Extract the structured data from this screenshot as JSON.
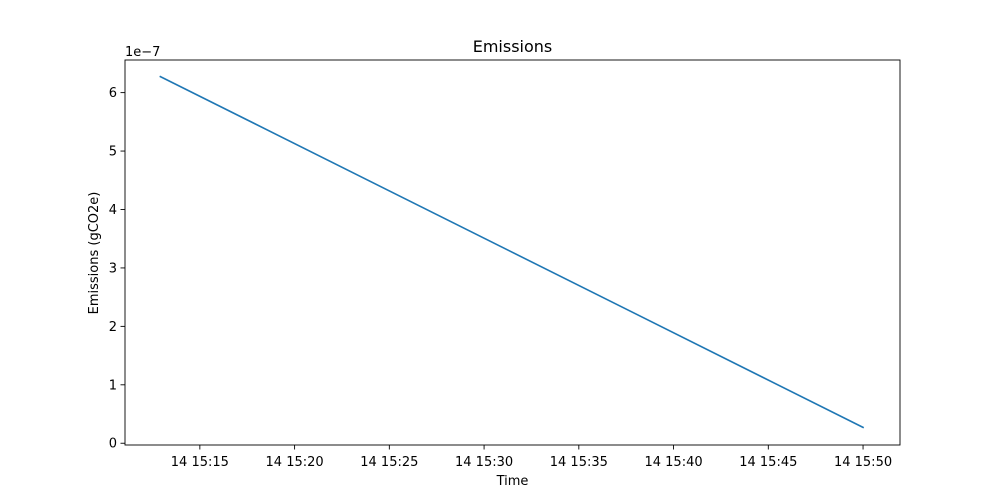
{
  "chart_data": {
    "type": "line",
    "title": "Emissions",
    "xlabel": "Time",
    "ylabel": "Emissions (gCO2e)",
    "y_offset_label": "1e−7",
    "y_scale_factor": 1e-07,
    "x_ticks": [
      "2024-01-14 15:15",
      "2024-01-14 15:20",
      "2024-01-14 15:25",
      "2024-01-14 15:30",
      "2024-01-14 15:35",
      "2024-01-14 15:40",
      "2024-01-14 15:45",
      "2024-01-14 15:50"
    ],
    "x_tick_labels": [
      "14 15:15",
      "14 15:20",
      "14 15:25",
      "14 15:30",
      "14 15:35",
      "14 15:40",
      "14 15:45",
      "14 15:50"
    ],
    "y_ticks": [
      0,
      1,
      2,
      3,
      4,
      5,
      6
    ],
    "y_tick_labels": [
      "0",
      "1",
      "2",
      "3",
      "4",
      "5",
      "6"
    ],
    "xlim": [
      "2024-01-14 15:11:03",
      "2024-01-14 15:51:57"
    ],
    "ylim": [
      -0.0301,
      6.5583
    ],
    "grid": false,
    "legend": false,
    "series": [
      {
        "color": "#1f77b4",
        "x": [
          "2024-01-14 15:12:55",
          "2024-01-14 15:50:00"
        ],
        "y": [
          6.2746,
          0.2713
        ]
      }
    ]
  }
}
